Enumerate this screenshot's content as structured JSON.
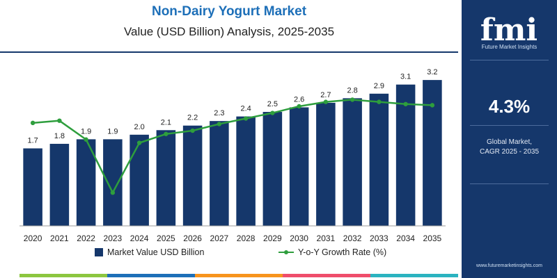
{
  "chart_data": {
    "type": "bar",
    "title": "Non-Dairy Yogurt Market",
    "subtitle": "Value (USD Billion) Analysis, 2025-2035",
    "categories": [
      "2020",
      "2021",
      "2022",
      "2023",
      "2024",
      "2025",
      "2026",
      "2027",
      "2028",
      "2029",
      "2030",
      "2031",
      "2032",
      "2033",
      "2034",
      "2035"
    ],
    "series": [
      {
        "name": "Market Value USD Billion",
        "type": "bar",
        "values": [
          1.7,
          1.8,
          1.9,
          1.9,
          2.0,
          2.1,
          2.2,
          2.3,
          2.4,
          2.5,
          2.6,
          2.7,
          2.8,
          2.9,
          3.1,
          3.2
        ],
        "labels": [
          "1.7",
          "1.8",
          "1.9",
          "1.9",
          "2.0",
          "2.1",
          "2.2",
          "2.3",
          "2.4",
          "2.5",
          "2.6",
          "2.7",
          "2.8",
          "2.9",
          "3.1",
          "3.2"
        ],
        "color": "#15376b"
      },
      {
        "name": "Y-o-Y Growth Rate (%)",
        "type": "line",
        "values": [
          4.3,
          4.5,
          2.8,
          -2.0,
          2.5,
          3.3,
          3.6,
          4.2,
          4.7,
          5.2,
          5.8,
          6.2,
          6.4,
          6.2,
          6.0,
          5.9
        ],
        "color": "#2e9e3d"
      }
    ],
    "xlabel": "",
    "ylabel": "",
    "ylim": [
      0,
      3.4
    ],
    "y2lim": [
      -5,
      9
    ],
    "grid": false,
    "legend": "bottom"
  },
  "panel": {
    "brand": "fmi",
    "tagline": "Future Market Insights",
    "cagr": "4.3%",
    "caption_line1": "Global Market,",
    "caption_line2": "CAGR 2025 - 2035",
    "website": "www.futuremarketinsights.com",
    "background": "#15376b"
  },
  "accent_strip": [
    "#8cc63f",
    "#1d6fb8",
    "#f7941d",
    "#ef4d6b",
    "#2bb3c0"
  ]
}
